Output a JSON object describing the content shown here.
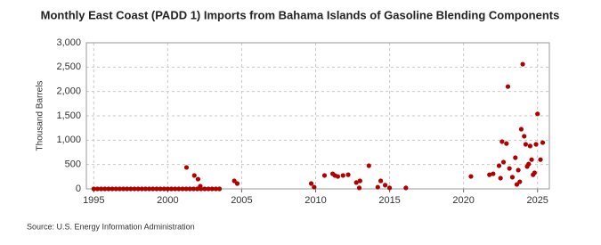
{
  "chart_data": {
    "type": "scatter",
    "title": "Monthly East Coast (PADD 1) Imports from Bahama Islands of Gasoline Blending Components",
    "y_label": "Thousand Barrels",
    "source": "Source: U.S. Energy Information Administration",
    "color": "#b00000",
    "grid": true,
    "xlim": [
      1994.5,
      2025.8
    ],
    "xticks": [
      1995,
      2000,
      2005,
      2010,
      2015,
      2020,
      2025
    ],
    "ylim": [
      0,
      3000
    ],
    "yticks": [
      0,
      {
        "value": 500,
        "label": "500"
      },
      {
        "value": 1000,
        "label": "1,000"
      },
      {
        "value": 1500,
        "label": "1,500"
      },
      {
        "value": 2000,
        "label": "2,000"
      },
      {
        "value": 2500,
        "label": "2,500"
      },
      {
        "value": 3000,
        "label": "3,000"
      }
    ],
    "x": [
      1995,
      1995.25,
      1995.5,
      1995.75,
      1996,
      1996.25,
      1996.5,
      1996.75,
      1997,
      1997.25,
      1997.5,
      1997.75,
      1998,
      1998.25,
      1998.5,
      1998.75,
      1999,
      1999.25,
      1999.5,
      1999.75,
      2000,
      2000.25,
      2000.5,
      2000.75,
      2001,
      2001.25,
      2001.5,
      2001.75,
      2002,
      2002.25,
      2002.5,
      2002.75,
      2003,
      2003.25,
      2003.5,
      2001.27,
      2001.8,
      2002.05,
      2002.2,
      2004.5,
      2004.7,
      2009.7,
      2009.9,
      2010.6,
      2011.15,
      2011.3,
      2011.5,
      2011.85,
      2012.2,
      2012.75,
      2012.95,
      2013.0,
      2013.6,
      2014.2,
      2014.4,
      2014.7,
      2015.0,
      2016.1,
      2020.5,
      2021.75,
      2022.0,
      2022.4,
      2022.5,
      2022.6,
      2022.7,
      2022.9,
      2023.0,
      2023.1,
      2023.3,
      2023.5,
      2023.6,
      2023.7,
      2023.8,
      2023.9,
      2024.0,
      2024.1,
      2024.2,
      2024.3,
      2024.4,
      2024.5,
      2024.6,
      2024.7,
      2024.8,
      2024.9,
      2025.0,
      2025.2,
      2025.35
    ],
    "values": [
      0,
      0,
      0,
      0,
      0,
      0,
      0,
      0,
      0,
      0,
      0,
      0,
      0,
      0,
      0,
      0,
      0,
      0,
      0,
      0,
      0,
      0,
      0,
      0,
      0,
      0,
      0,
      0,
      0,
      0,
      0,
      0,
      0,
      0,
      0,
      440,
      275,
      200,
      55,
      165,
      110,
      110,
      35,
      275,
      310,
      275,
      255,
      275,
      290,
      130,
      20,
      165,
      475,
      35,
      165,
      75,
      20,
      20,
      255,
      290,
      310,
      475,
      220,
      970,
      550,
      930,
      2100,
      420,
      240,
      640,
      90,
      385,
      145,
      1225,
      2560,
      1080,
      915,
      460,
      510,
      880,
      600,
      290,
      330,
      915,
      1540,
      600,
      950
    ]
  }
}
